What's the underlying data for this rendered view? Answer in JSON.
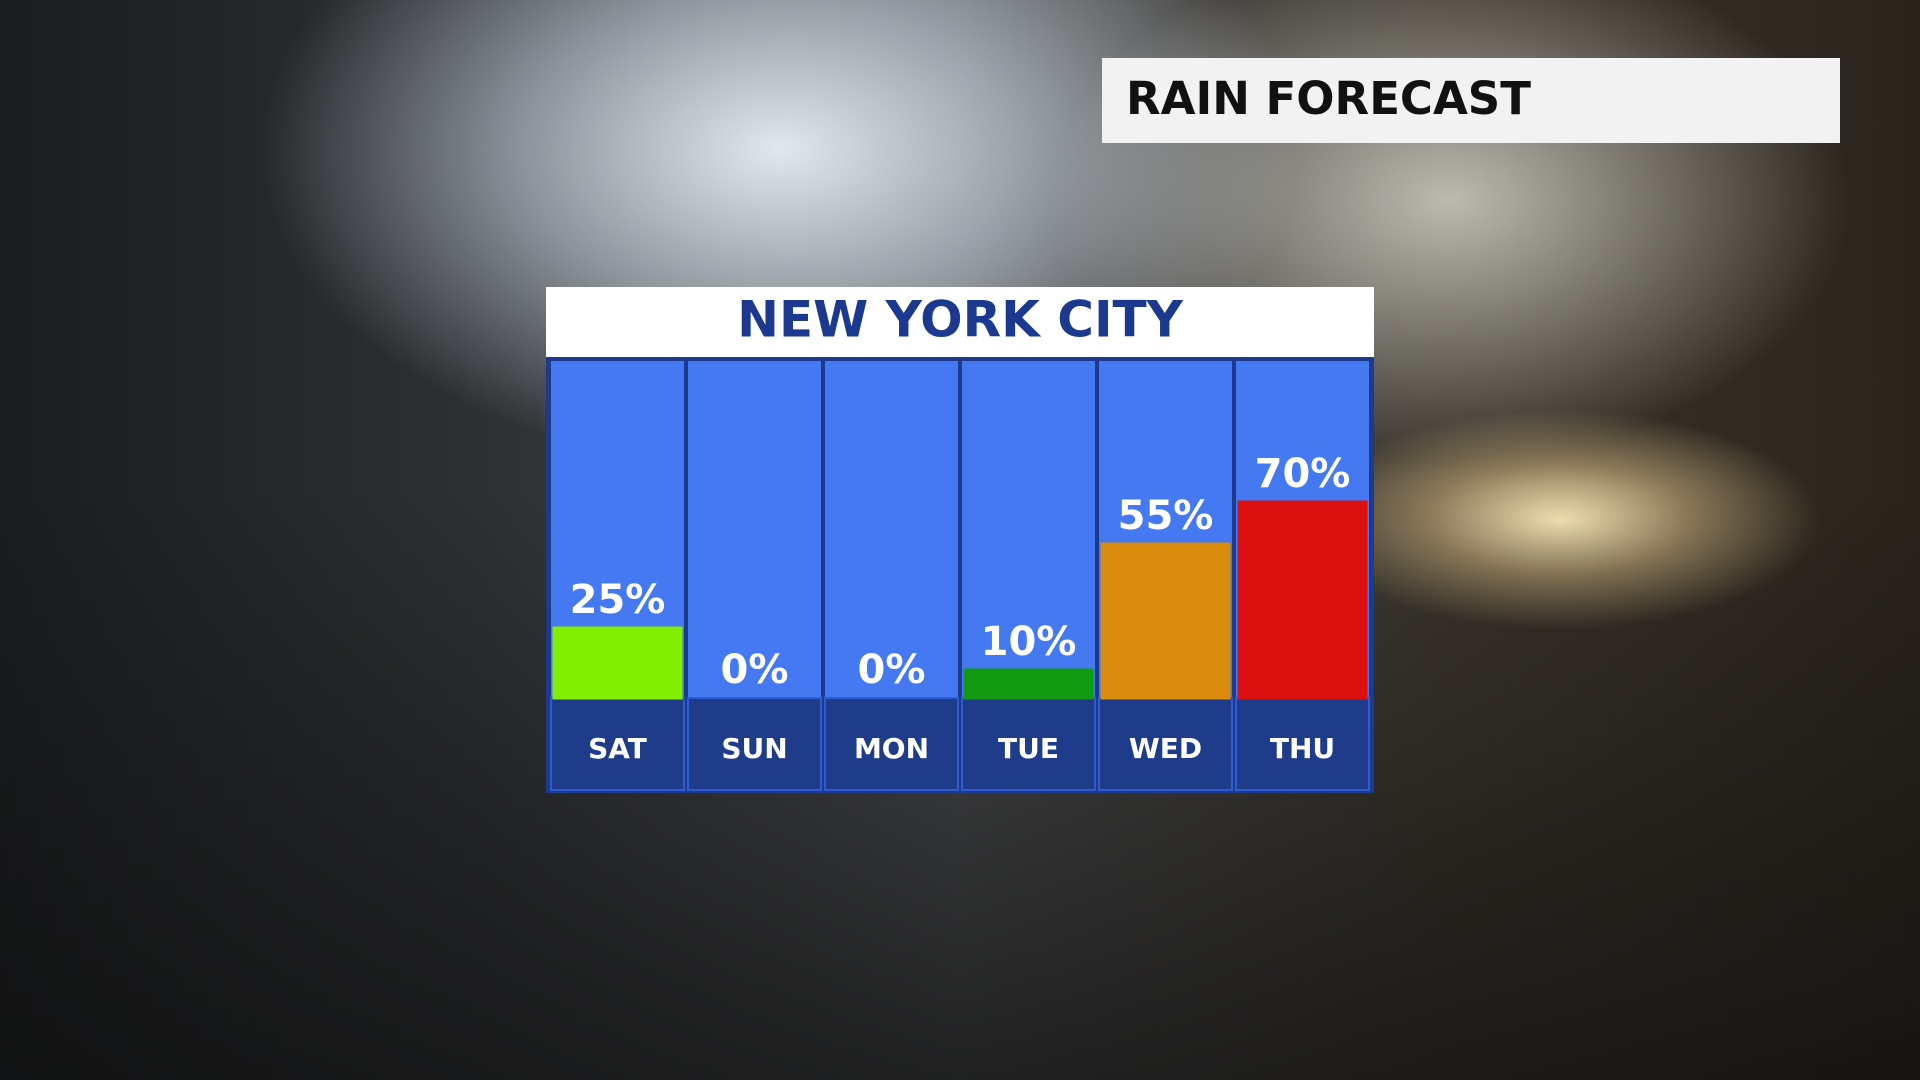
{
  "header": {
    "title": "RAIN FORECAST"
  },
  "chart_data": {
    "type": "bar",
    "title": "NEW YORK CITY",
    "categories": [
      "SAT",
      "SUN",
      "MON",
      "TUE",
      "WED",
      "THU"
    ],
    "values": [
      25,
      0,
      0,
      10,
      55,
      70
    ],
    "value_labels": [
      "25%",
      "0%",
      "0%",
      "10%",
      "55%",
      "70%"
    ],
    "colors": [
      "#80f000",
      "#ffffff",
      "#ffffff",
      "#129a12",
      "#d98c0e",
      "#dd1010"
    ]
  }
}
